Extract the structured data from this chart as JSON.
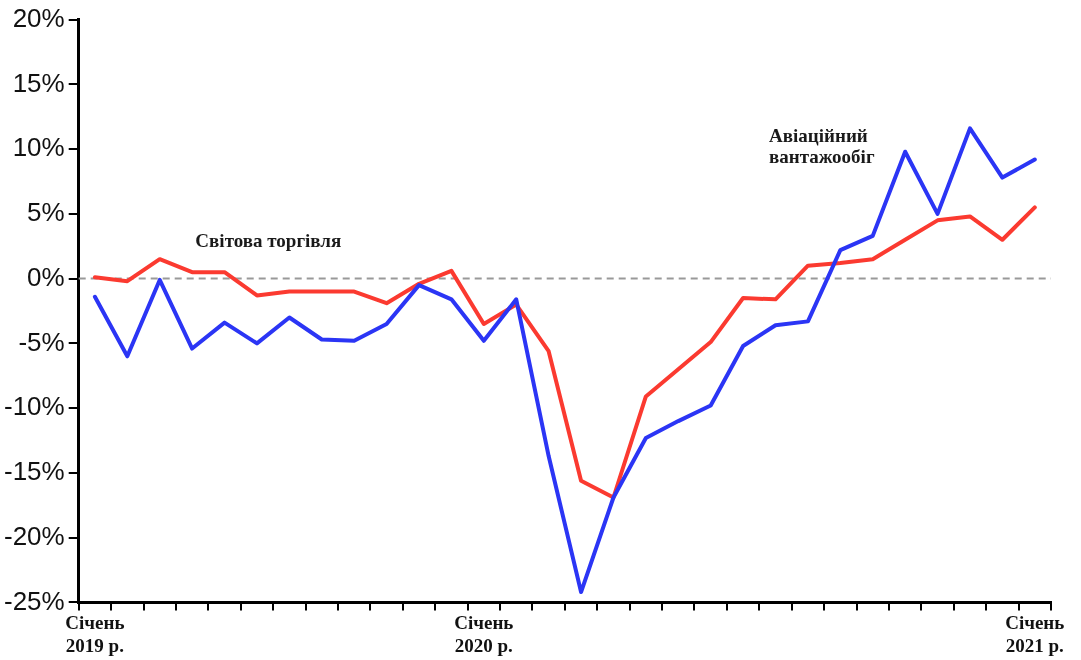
{
  "chart_data": {
    "type": "line",
    "categories": [
      "Січень 2019 р.",
      null,
      null,
      null,
      null,
      null,
      null,
      null,
      null,
      null,
      null,
      null,
      "Січень 2020 р.",
      null,
      null,
      null,
      null,
      null,
      null,
      null,
      null,
      null,
      null,
      null,
      null,
      null,
      null,
      null,
      null,
      "Січень 2021 р."
    ],
    "series": [
      {
        "name": "Авіаційний вантажообіг",
        "color": "#2b35f5",
        "values": [
          -1.4,
          -6.0,
          -0.1,
          -5.4,
          -3.4,
          -5.0,
          -3.0,
          -4.7,
          -4.8,
          -3.5,
          -0.5,
          -1.6,
          -4.8,
          -1.6,
          -13.7,
          -24.2,
          -16.9,
          -12.3,
          -11.0,
          -9.8,
          -5.2,
          -3.6,
          -3.3,
          2.2,
          3.3,
          9.8,
          5.0,
          11.6,
          7.8,
          9.2
        ]
      },
      {
        "name": "Світова торгівля",
        "color": "#fb3a30",
        "values": [
          0.1,
          -0.2,
          1.5,
          0.5,
          0.5,
          -1.3,
          -1.0,
          -1.0,
          -1.0,
          -1.9,
          -0.4,
          0.6,
          -3.5,
          -2.0,
          -5.6,
          -15.6,
          -16.9,
          -9.1,
          -7.0,
          -4.9,
          -1.5,
          -1.6,
          1.0,
          1.2,
          1.5,
          3.0,
          4.5,
          4.8,
          3.0,
          5.5
        ]
      }
    ],
    "ylim": [
      -25,
      20
    ],
    "yticks": [
      {
        "value": -25,
        "label": "-25%"
      },
      {
        "value": -20,
        "label": "-20%"
      },
      {
        "value": -15,
        "label": "-15%"
      },
      {
        "value": -10,
        "label": "-10%"
      },
      {
        "value": -5,
        "label": "-5%"
      },
      {
        "value": 0,
        "label": "0%"
      },
      {
        "value": 5,
        "label": "5%"
      },
      {
        "value": 10,
        "label": "10%"
      },
      {
        "value": 15,
        "label": "15%"
      },
      {
        "value": 20,
        "label": "20%"
      }
    ],
    "ref_lines": [
      {
        "axis": "y",
        "value": 0,
        "color": "#999999",
        "line_style": "dashed"
      }
    ],
    "grid": false,
    "legend": false,
    "marker": "none",
    "line_style": "solid"
  }
}
